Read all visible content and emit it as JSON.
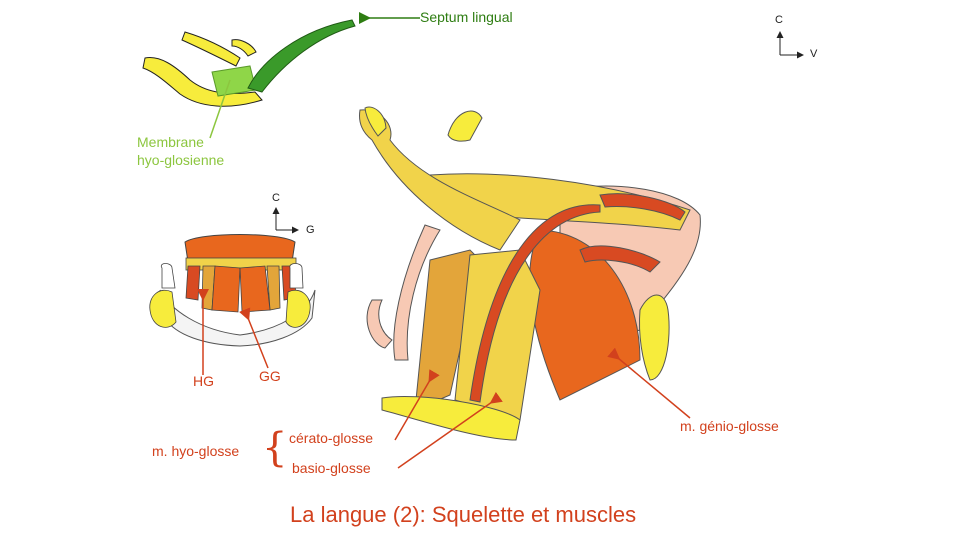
{
  "labels": {
    "septum_lingual": "Septum lingual",
    "membrane_line1": "Membrane",
    "membrane_line2": "hyo-glosienne",
    "hg": "HG",
    "gg": "GG",
    "hyo_glosse": "m. hyo-glosse",
    "cerato_glosse": "cérato-glosse",
    "basio_glosse": "basio-glosse",
    "genio_glosse": "m. génio-glosse",
    "brace": "{"
  },
  "axes": {
    "top_right": {
      "up": "C",
      "right": "V"
    },
    "left": {
      "up": "C",
      "right": "G"
    }
  },
  "title": "La langue (2): Squelette et muscles",
  "colors": {
    "bone_yellow": "#f7ec3c",
    "septum_green": "#3a9a2a",
    "membrane_green": "#8fd648",
    "muscle_orange": "#e8671e",
    "muscle_red": "#d84a22",
    "muscle_tan": "#e3a53a",
    "muscle_yellow": "#f1d34a",
    "label_red": "#d2411d",
    "label_green": "#2e7d12"
  }
}
